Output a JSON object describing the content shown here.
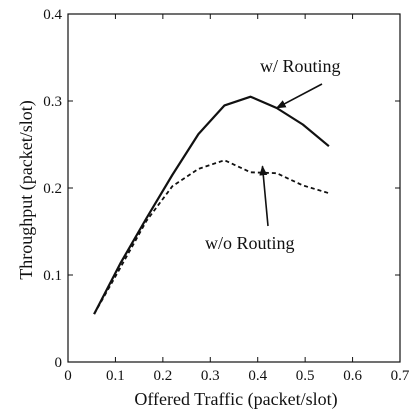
{
  "chart_data": {
    "type": "line",
    "xlabel": "Offered Traffic (packet/slot)",
    "ylabel": "Throughput (packet/slot)",
    "xlim": [
      0,
      0.7
    ],
    "ylim": [
      0,
      0.4
    ],
    "xticks": [
      0,
      0.1,
      0.2,
      0.3,
      0.4,
      0.5,
      0.6,
      0.7
    ],
    "yticks": [
      0,
      0.1,
      0.2,
      0.3,
      0.4
    ],
    "xtick_labels": [
      "0",
      "0.1",
      "0.2",
      "0.3",
      "0.4",
      "0.5",
      "0.6",
      "0.7"
    ],
    "ytick_labels": [
      "0",
      "0.1",
      "0.2",
      "0.3",
      "0.4"
    ],
    "grid": false,
    "series": [
      {
        "name": "w/ Routing",
        "style": "solid",
        "color": "#111111",
        "x": [
          0.055,
          0.11,
          0.165,
          0.22,
          0.275,
          0.33,
          0.385,
          0.44,
          0.495,
          0.55
        ],
        "y": [
          0.055,
          0.113,
          0.165,
          0.215,
          0.262,
          0.295,
          0.305,
          0.292,
          0.273,
          0.248
        ]
      },
      {
        "name": "w/o Routing",
        "style": "dashed",
        "color": "#111111",
        "x": [
          0.055,
          0.11,
          0.165,
          0.22,
          0.275,
          0.33,
          0.385,
          0.44,
          0.495,
          0.55
        ],
        "y": [
          0.055,
          0.108,
          0.162,
          0.202,
          0.222,
          0.232,
          0.218,
          0.217,
          0.203,
          0.194
        ]
      }
    ],
    "annotations": [
      {
        "text": "w/ Routing",
        "series": "w/ Routing",
        "arrow_to": [
          0.44,
          0.292
        ]
      },
      {
        "text": "w/o Routing",
        "series": "w/o Routing",
        "arrow_to": [
          0.41,
          0.225
        ]
      }
    ]
  }
}
